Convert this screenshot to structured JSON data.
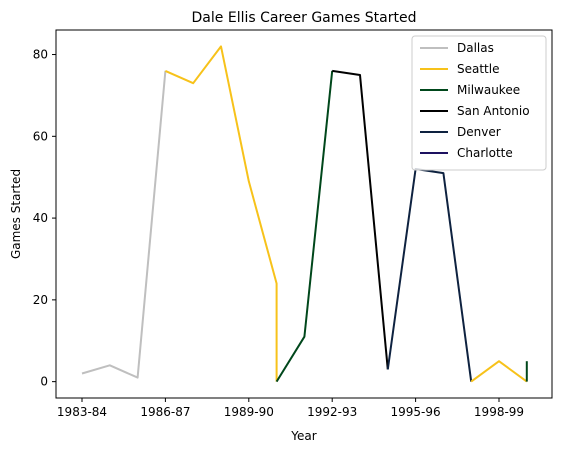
{
  "chart_data": {
    "type": "line",
    "title": "Dale Ellis Career Games Started",
    "xlabel": "Year",
    "ylabel": "Games Started",
    "x_tick_labels": [
      "1983-84",
      "1986-87",
      "1989-90",
      "1992-93",
      "1995-96",
      "1998-99"
    ],
    "y_ticks": [
      0,
      20,
      40,
      60,
      80
    ],
    "ylim": [
      -4,
      86
    ],
    "grid": false,
    "legend_position": "top-right",
    "series": [
      {
        "name": "Dallas",
        "color": "#bfbfbf",
        "points": [
          [
            "1983-84",
            2
          ],
          [
            "1984-85",
            4
          ],
          [
            "1985-86",
            1
          ],
          [
            "1986-87",
            76
          ]
        ]
      },
      {
        "name": "Seattle",
        "color": "#f7c21a",
        "points": [
          [
            "1986-87",
            76
          ],
          [
            "1987-88",
            73
          ],
          [
            "1988-89",
            82
          ],
          [
            "1989-90",
            49
          ],
          [
            "1990-91",
            24
          ],
          [
            "1990-91",
            0
          ]
        ]
      },
      {
        "name": "Milwaukee",
        "color": "#00471b",
        "points": [
          [
            "1990-91",
            0
          ],
          [
            "1991-92",
            11
          ],
          [
            "1992-93",
            76
          ]
        ]
      },
      {
        "name": "San Antonio",
        "color": "#000000",
        "points": [
          [
            "1992-93",
            76
          ],
          [
            "1993-94",
            75
          ],
          [
            "1994-95",
            3
          ]
        ]
      },
      {
        "name": "Denver",
        "color": "#0e2240",
        "points": [
          [
            "1994-95",
            3
          ],
          [
            "1995-96",
            52
          ],
          [
            "1996-97",
            51
          ],
          [
            "1997-98",
            0
          ]
        ]
      },
      {
        "name": "Seattle",
        "color": "#f7c21a",
        "points": [
          [
            "1997-98",
            0
          ],
          [
            "1998-99",
            5
          ],
          [
            "1999-00",
            0
          ]
        ]
      },
      {
        "name": "Milwaukee",
        "color": "#00471b",
        "points": [
          [
            "1999-00",
            0
          ],
          [
            "1999-00",
            5
          ]
        ]
      },
      {
        "name": "Charlotte",
        "color": "#1d1160",
        "points": []
      }
    ],
    "legend": [
      {
        "name": "Dallas",
        "color": "#bfbfbf"
      },
      {
        "name": "Seattle",
        "color": "#f7c21a"
      },
      {
        "name": "Milwaukee",
        "color": "#00471b"
      },
      {
        "name": "San Antonio",
        "color": "#000000"
      },
      {
        "name": "Denver",
        "color": "#0e2240"
      },
      {
        "name": "Charlotte",
        "color": "#1d1160"
      }
    ]
  }
}
